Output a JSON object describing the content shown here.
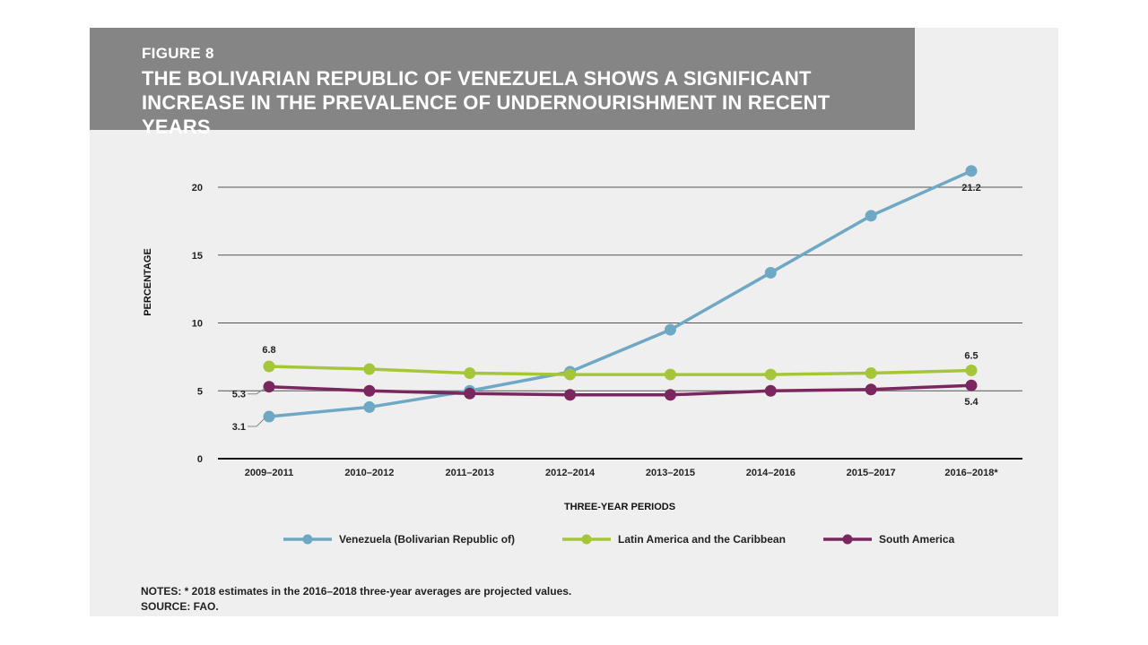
{
  "figure": {
    "label": "FIGURE 8",
    "title": "THE BOLIVARIAN REPUBLIC OF VENEZUELA SHOWS A SIGNIFICANT INCREASE IN THE PREVALENCE OF UNDERNOURISHMENT IN RECENT YEARS"
  },
  "notes": {
    "line1": "NOTES: * 2018 estimates in the 2016–2018 three-year averages are projected values.",
    "line2": "SOURCE: FAO."
  },
  "chart_data": {
    "type": "line",
    "xlabel": "THREE-YEAR PERIODS",
    "ylabel": "PERCENTAGE",
    "ylim": [
      0,
      21
    ],
    "yticks": [
      0,
      5,
      10,
      15,
      20
    ],
    "grid": true,
    "legend_position": "bottom",
    "categories": [
      "2009–2011",
      "2010–2012",
      "2011–2013",
      "2012–2014",
      "2013–2015",
      "2014–2016",
      "2015–2017",
      "2016–2018*"
    ],
    "series": [
      {
        "name": "Venezuela (Bolivarian Republic of)",
        "color": "#6fa8c4",
        "values": [
          3.1,
          3.8,
          5.0,
          6.4,
          9.5,
          13.7,
          17.9,
          21.2
        ]
      },
      {
        "name": "Latin America and the Caribbean",
        "color": "#a6c63a",
        "values": [
          6.8,
          6.6,
          6.3,
          6.2,
          6.2,
          6.2,
          6.3,
          6.5
        ]
      },
      {
        "name": "South America",
        "color": "#7a2760",
        "values": [
          5.3,
          5.0,
          4.8,
          4.7,
          4.7,
          5.0,
          5.1,
          5.4
        ]
      }
    ],
    "annotations": [
      {
        "series": 1,
        "index": 0,
        "text": "6.8"
      },
      {
        "series": 1,
        "index": 7,
        "text": "6.5"
      },
      {
        "series": 2,
        "index": 0,
        "text": "5.3"
      },
      {
        "series": 2,
        "index": 7,
        "text": "5.4"
      },
      {
        "series": 0,
        "index": 0,
        "text": "3.1"
      },
      {
        "series": 0,
        "index": 7,
        "text": "21.2"
      }
    ]
  }
}
